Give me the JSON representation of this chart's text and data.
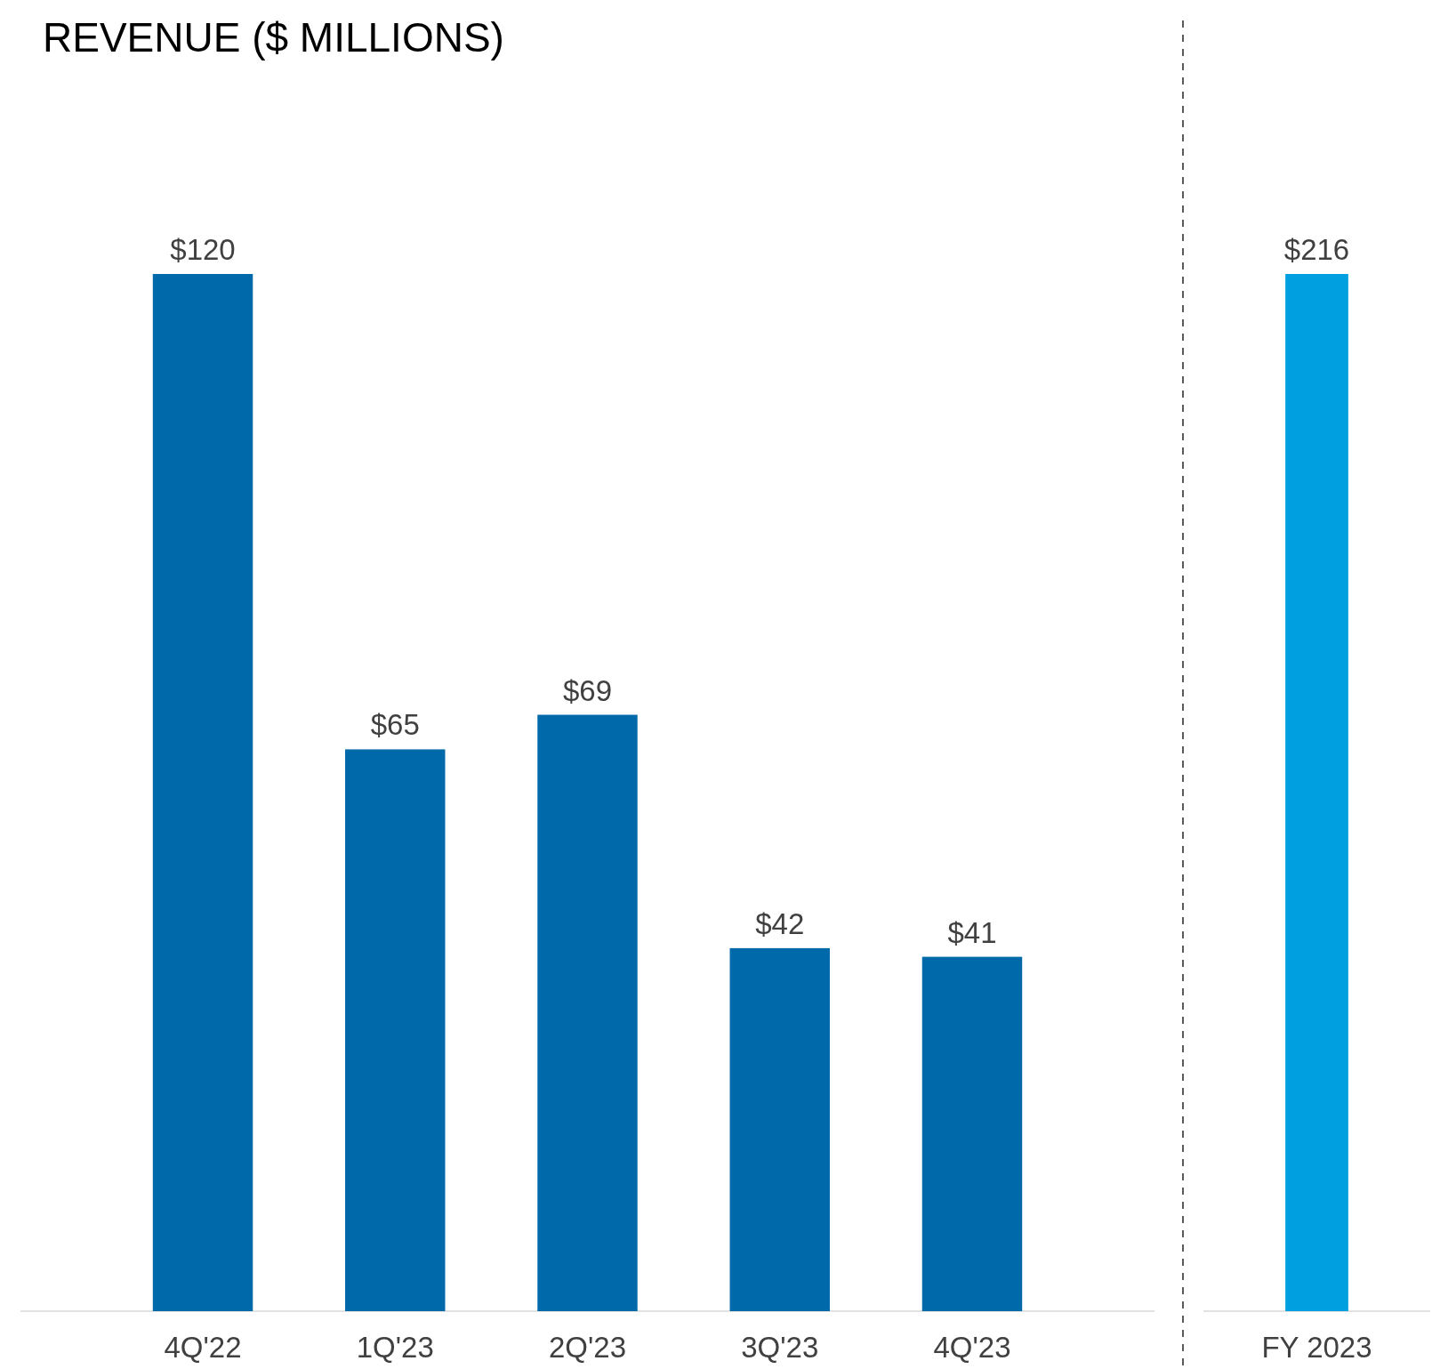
{
  "chart_data": [
    {
      "type": "bar",
      "title": "REVENUE ($ MILLIONS)",
      "categories": [
        "4Q'22",
        "1Q'23",
        "2Q'23",
        "3Q'23",
        "4Q'23"
      ],
      "values": [
        120,
        65,
        69,
        42,
        41
      ],
      "color": "#0069aa",
      "value_labels": [
        "$120",
        "$65",
        "$69",
        "$42",
        "$41"
      ]
    },
    {
      "type": "bar",
      "categories": [
        "FY 2023"
      ],
      "values": [
        216
      ],
      "color": "#009fdf",
      "value_labels": [
        "$216"
      ]
    }
  ]
}
